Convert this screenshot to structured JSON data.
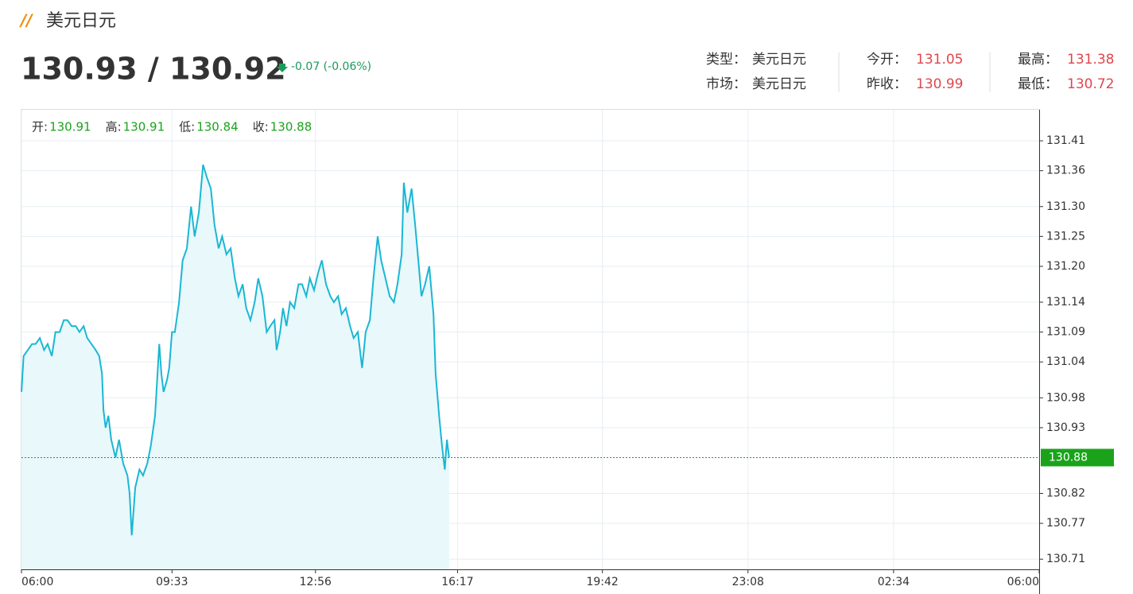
{
  "header": {
    "title": "美元日元",
    "price": "130.93 / 130.92",
    "change": "-0.07 (-0.06%)"
  },
  "info": [
    {
      "label": "类型：",
      "value": "美元日元"
    },
    {
      "label": "今开：",
      "value": "131.05"
    },
    {
      "label": "最高：",
      "value": "131.38"
    },
    {
      "label": "市场：",
      "value": "美元日元"
    },
    {
      "label": "昨收：",
      "value": "130.99"
    },
    {
      "label": "最低：",
      "value": "130.72"
    }
  ],
  "ohlc": [
    {
      "label": "开:",
      "value": "130.91"
    },
    {
      "label": "高:",
      "value": "130.91"
    },
    {
      "label": "低:",
      "value": "130.84"
    },
    {
      "label": "收:",
      "value": "130.88"
    }
  ],
  "chart_data": {
    "type": "area",
    "color": "#1ab7d4",
    "fill": "#e8f8fb",
    "grid": true,
    "x": [
      0,
      3,
      9,
      15,
      20,
      26,
      32,
      37,
      43,
      48,
      54,
      60,
      65,
      71,
      77,
      82,
      88,
      93,
      99,
      105,
      110,
      114,
      116,
      119,
      123,
      127,
      133,
      138,
      144,
      150,
      153,
      156,
      161,
      167,
      172,
      178,
      183,
      189,
      195,
      198,
      201,
      206,
      209,
      213,
      217,
      223,
      228,
      234,
      240,
      245,
      251,
      257,
      262,
      268,
      273,
      279,
      284,
      290,
      296,
      302,
      307,
      313,
      318,
      324,
      330,
      335,
      341,
      347,
      352,
      358,
      361,
      366,
      370,
      375,
      380,
      386,
      392,
      397,
      403,
      408,
      414,
      420,
      425,
      431,
      437,
      442,
      448,
      453,
      459,
      465,
      470,
      476,
      482,
      487,
      493,
      498,
      504,
      509,
      515,
      521,
      527,
      532,
      538,
      541,
      546,
      552,
      557,
      560,
      566,
      571,
      577,
      583,
      586,
      591,
      595,
      599,
      602,
      605
    ],
    "values": [
      130.99,
      131.05,
      131.06,
      131.07,
      131.07,
      131.08,
      131.06,
      131.07,
      131.05,
      131.09,
      131.09,
      131.11,
      131.11,
      131.1,
      131.1,
      131.09,
      131.1,
      131.08,
      131.07,
      131.06,
      131.05,
      131.02,
      130.96,
      130.93,
      130.95,
      130.91,
      130.88,
      130.91,
      130.87,
      130.85,
      130.82,
      130.75,
      130.83,
      130.86,
      130.85,
      130.87,
      130.9,
      130.95,
      131.07,
      131.02,
      130.99,
      131.01,
      131.03,
      131.09,
      131.09,
      131.14,
      131.21,
      131.23,
      131.3,
      131.25,
      131.29,
      131.37,
      131.35,
      131.33,
      131.27,
      131.23,
      131.25,
      131.22,
      131.23,
      131.18,
      131.15,
      131.17,
      131.13,
      131.11,
      131.14,
      131.18,
      131.15,
      131.09,
      131.1,
      131.11,
      131.06,
      131.09,
      131.13,
      131.1,
      131.14,
      131.13,
      131.17,
      131.17,
      131.15,
      131.18,
      131.16,
      131.19,
      131.21,
      131.17,
      131.15,
      131.14,
      131.15,
      131.12,
      131.13,
      131.1,
      131.08,
      131.09,
      131.03,
      131.09,
      131.11,
      131.18,
      131.25,
      131.21,
      131.18,
      131.15,
      131.14,
      131.17,
      131.22,
      131.34,
      131.29,
      131.33,
      131.27,
      131.23,
      131.15,
      131.17,
      131.2,
      131.12,
      131.02,
      130.95,
      130.9,
      130.86,
      130.91,
      130.88
    ],
    "xlim": [
      0,
      1440
    ],
    "xticks": [
      {
        "value": 0,
        "label": "06:00"
      },
      {
        "value": 213,
        "label": "09:33"
      },
      {
        "value": 416,
        "label": "12:56"
      },
      {
        "value": 617,
        "label": "16:17"
      },
      {
        "value": 822,
        "label": "19:42"
      },
      {
        "value": 1028,
        "label": "23:08"
      },
      {
        "value": 1234,
        "label": "02:34"
      },
      {
        "value": 1440,
        "label": "06:00"
      }
    ],
    "ylim": [
      130.693,
      131.462
    ],
    "yticks": [
      131.41,
      131.36,
      {
        "value": 131.3,
        "label": "131.30"
      },
      131.25,
      {
        "value": 131.2,
        "label": "131.20"
      },
      131.14,
      131.09,
      131.04,
      130.98,
      130.93,
      130.82,
      130.77,
      130.71
    ],
    "last_value": 130.88,
    "last_color": "#1aa31a"
  }
}
